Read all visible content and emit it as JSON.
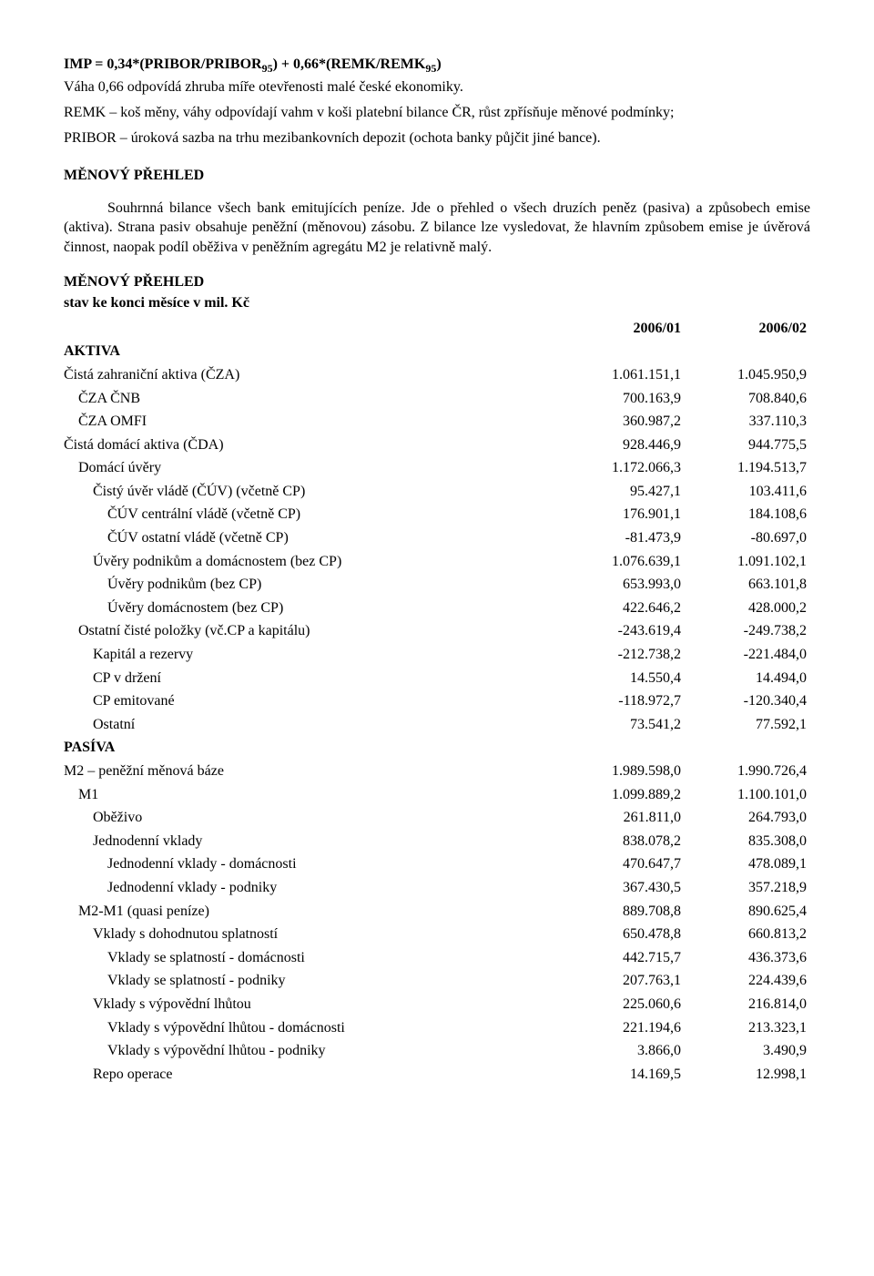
{
  "intro": {
    "formula_html": "IMP = 0,34*(PRIBOR/PRIBOR<span class=\"sub\">95</span>) + 0,66*(REMK/REMK<span class=\"sub\">95</span>)",
    "line2": "Váha 0,66 odpovídá zhruba míře otevřenosti malé české ekonomiky.",
    "line3": "REMK – koš měny, váhy odpovídají vahm v koši platební bilance ČR, růst zpřísňuje měnové podmínky;",
    "line4": "PRIBOR – úroková sazba na trhu mezibankovních depozit (ochota banky půjčit jiné bance)."
  },
  "overview_head": "MĚNOVÝ PŘEHLED",
  "overview_body": "Souhrnná bilance všech bank emitujících peníze. Jde o přehled o všech druzích peněz (pasiva) a způsobech emise (aktiva). Strana pasiv obsahuje peněžní (měnovou) zásobu. Z bilance lze vysledovat, že hlavním způsobem emise je úvěrová činnost, naopak podíl oběživa v peněžním agregátu M2 je relativně malý.",
  "table_title": "MĚNOVÝ PŘEHLED",
  "table_sub": "stav ke konci měsíce v mil. Kč",
  "cols": [
    "2006/01",
    "2006/02"
  ],
  "rows": [
    {
      "label": "AKTIVA",
      "indent": 0,
      "section": true
    },
    {
      "label": "Čistá zahraniční aktiva (ČZA)",
      "indent": 0,
      "v": [
        "1.061.151,1",
        "1.045.950,9"
      ]
    },
    {
      "label": "ČZA ČNB",
      "indent": 1,
      "v": [
        "700.163,9",
        "708.840,6"
      ]
    },
    {
      "label": "ČZA OMFI",
      "indent": 1,
      "v": [
        "360.987,2",
        "337.110,3"
      ]
    },
    {
      "label": "Čistá domácí aktiva (ČDA)",
      "indent": 0,
      "v": [
        "928.446,9",
        "944.775,5"
      ]
    },
    {
      "label": "Domácí úvěry",
      "indent": 1,
      "v": [
        "1.172.066,3",
        "1.194.513,7"
      ]
    },
    {
      "label": "Čistý úvěr vládě (ČÚV) (včetně CP)",
      "indent": 2,
      "v": [
        "95.427,1",
        "103.411,6"
      ]
    },
    {
      "label": "ČÚV centrální vládě (včetně CP)",
      "indent": 3,
      "v": [
        "176.901,1",
        "184.108,6"
      ]
    },
    {
      "label": "ČÚV ostatní vládě (včetně CP)",
      "indent": 3,
      "v": [
        "-81.473,9",
        "-80.697,0"
      ]
    },
    {
      "label": "Úvěry podnikům a domácnostem (bez CP)",
      "indent": 2,
      "v": [
        "1.076.639,1",
        "1.091.102,1"
      ]
    },
    {
      "label": "Úvěry podnikům (bez CP)",
      "indent": 3,
      "v": [
        "653.993,0",
        "663.101,8"
      ]
    },
    {
      "label": "Úvěry domácnostem (bez CP)",
      "indent": 3,
      "v": [
        "422.646,2",
        "428.000,2"
      ]
    },
    {
      "label": "Ostatní čisté položky (vč.CP a kapitálu)",
      "indent": 1,
      "v": [
        "-243.619,4",
        "-249.738,2"
      ]
    },
    {
      "label": "Kapitál a rezervy",
      "indent": 2,
      "v": [
        "-212.738,2",
        "-221.484,0"
      ]
    },
    {
      "label": "CP v držení",
      "indent": 2,
      "v": [
        "14.550,4",
        "14.494,0"
      ]
    },
    {
      "label": "CP emitované",
      "indent": 2,
      "v": [
        "-118.972,7",
        "-120.340,4"
      ]
    },
    {
      "label": "Ostatní",
      "indent": 2,
      "v": [
        "73.541,2",
        "77.592,1"
      ]
    },
    {
      "label": "PASÍVA",
      "indent": 0,
      "section": true
    },
    {
      "label": "M2 – peněžní měnová báze",
      "indent": 0,
      "v": [
        "1.989.598,0",
        "1.990.726,4"
      ]
    },
    {
      "label": "M1",
      "indent": 1,
      "v": [
        "1.099.889,2",
        "1.100.101,0"
      ]
    },
    {
      "label": "Oběživo",
      "indent": 2,
      "v": [
        "261.811,0",
        "264.793,0"
      ]
    },
    {
      "label": "Jednodenní vklady",
      "indent": 2,
      "v": [
        "838.078,2",
        "835.308,0"
      ]
    },
    {
      "label": "Jednodenní vklady - domácnosti",
      "indent": 3,
      "v": [
        "470.647,7",
        "478.089,1"
      ]
    },
    {
      "label": "Jednodenní vklady - podniky",
      "indent": 3,
      "v": [
        "367.430,5",
        "357.218,9"
      ]
    },
    {
      "label": "M2-M1 (quasi peníze)",
      "indent": 1,
      "v": [
        "889.708,8",
        "890.625,4"
      ]
    },
    {
      "label": "Vklady s dohodnutou splatností",
      "indent": 2,
      "v": [
        "650.478,8",
        "660.813,2"
      ]
    },
    {
      "label": "Vklady se splatností - domácnosti",
      "indent": 3,
      "v": [
        "442.715,7",
        "436.373,6"
      ]
    },
    {
      "label": "Vklady se splatností - podniky",
      "indent": 3,
      "v": [
        "207.763,1",
        "224.439,6"
      ]
    },
    {
      "label": "Vklady s výpovědní lhůtou",
      "indent": 2,
      "v": [
        "225.060,6",
        "216.814,0"
      ]
    },
    {
      "label": "Vklady s výpovědní lhůtou - domácnosti",
      "indent": 3,
      "v": [
        "221.194,6",
        "213.323,1"
      ]
    },
    {
      "label": "Vklady s výpovědní lhůtou - podniky",
      "indent": 3,
      "v": [
        "3.866,0",
        "3.490,9"
      ]
    },
    {
      "label": "Repo operace",
      "indent": 2,
      "v": [
        "14.169,5",
        "12.998,1"
      ]
    }
  ]
}
